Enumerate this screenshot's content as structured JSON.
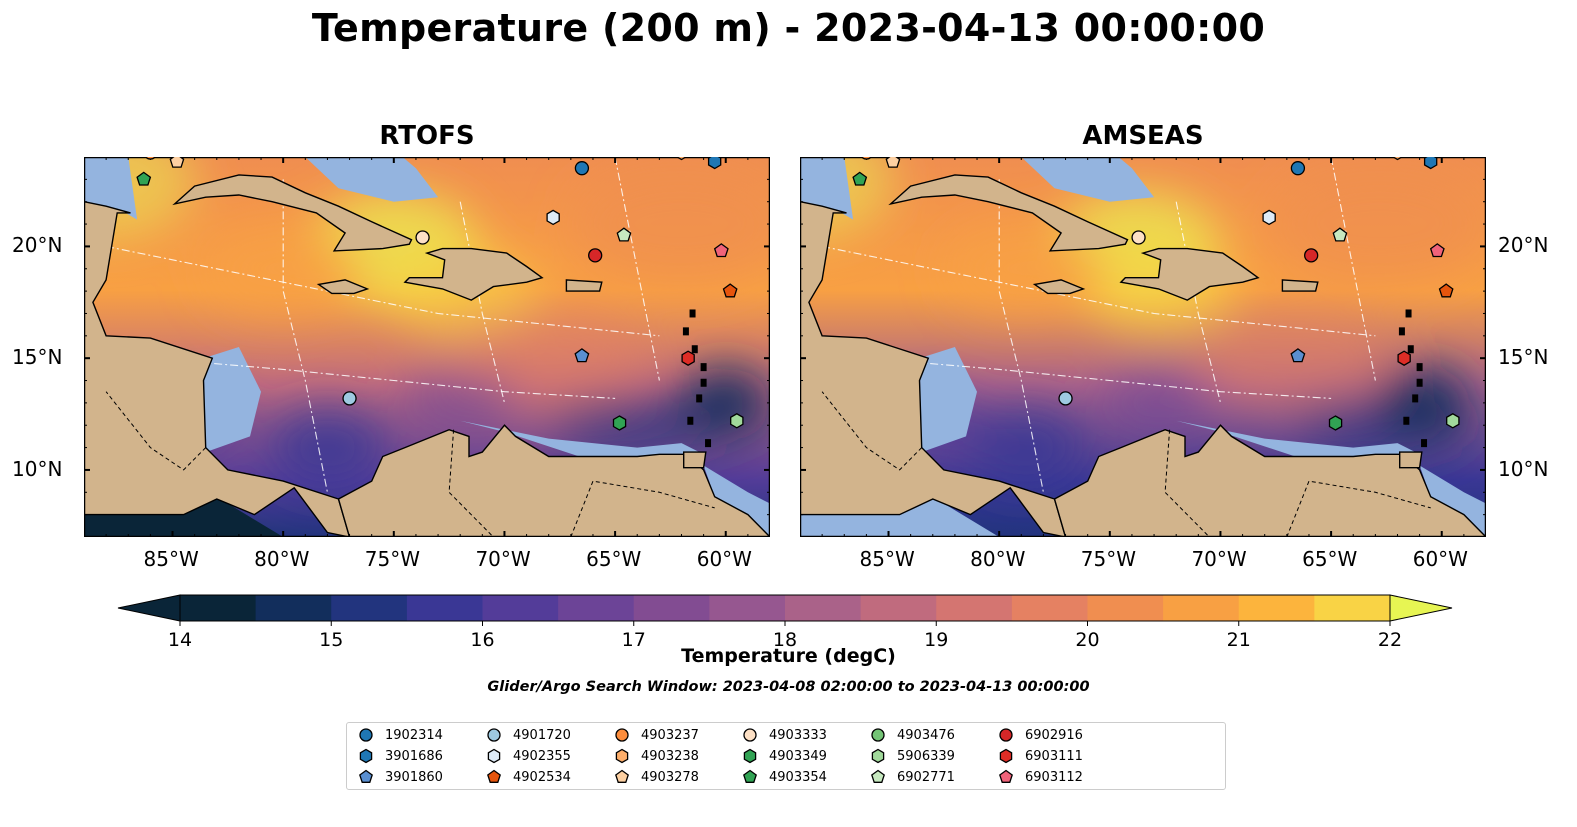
{
  "title": "Temperature (200 m) - 2023-04-13 00:00:00",
  "panels": [
    {
      "title": "RTOFS"
    },
    {
      "title": "AMSEAS"
    }
  ],
  "lon_ticks": [
    "85°W",
    "80°W",
    "75°W",
    "70°W",
    "65°W",
    "60°W"
  ],
  "lat_ticks": [
    "20°N",
    "15°N",
    "10°N"
  ],
  "map_extent": {
    "lon_min": -89,
    "lon_max": -58,
    "lat_min": 7,
    "lat_max": 24
  },
  "colorbar": {
    "label": "Temperature (degC)",
    "min": 14,
    "max": 22,
    "step": 0.5,
    "tick_labels": [
      "14",
      "15",
      "16",
      "17",
      "18",
      "19",
      "20",
      "21",
      "22"
    ],
    "colors": [
      "#0a2538",
      "#122e5c",
      "#22347e",
      "#3a3795",
      "#533c99",
      "#6c4497",
      "#824c92",
      "#965790",
      "#aa6289",
      "#c06b7e",
      "#d47571",
      "#e58162",
      "#f08e50",
      "#f8a043",
      "#fcb43d",
      "#f9d345",
      "#e7f553"
    ]
  },
  "search_window": "Glider/Argo Search Window: 2023-04-08 02:00:00 to 2023-04-13 00:00:00",
  "floats": [
    {
      "id": "1902314",
      "shape": "circle",
      "color": "#1f77b4",
      "lon": -66.5,
      "lat": 23.5
    },
    {
      "id": "3901686",
      "shape": "hexagon",
      "color": "#1f77b4",
      "lon": -60.5,
      "lat": 23.8
    },
    {
      "id": "3901860",
      "shape": "pentagon",
      "color": "#5a8fd0",
      "lon": -66.5,
      "lat": 15.1
    },
    {
      "id": "4901720",
      "shape": "circle",
      "color": "#9ecae1",
      "lon": -77.0,
      "lat": 13.2
    },
    {
      "id": "4902355",
      "shape": "hexagon",
      "color": "#deebf7",
      "lon": -67.8,
      "lat": 21.3
    },
    {
      "id": "4902534",
      "shape": "pentagon",
      "color": "#e6550d",
      "lon": -59.8,
      "lat": 18.0
    },
    {
      "id": "4903237",
      "shape": "circle",
      "color": "#fd8d3c",
      "lon": -86.0,
      "lat": 24.2
    },
    {
      "id": "4903238",
      "shape": "hexagon",
      "color": "#fdae6b",
      "lon": -62.0,
      "lat": 24.2
    },
    {
      "id": "4903278",
      "shape": "pentagon",
      "color": "#fdd0a2",
      "lon": -84.8,
      "lat": 23.8
    },
    {
      "id": "4903333",
      "shape": "circle",
      "color": "#fde0c5",
      "lon": -73.7,
      "lat": 20.4
    },
    {
      "id": "4903349",
      "shape": "hexagon",
      "color": "#31a354",
      "lon": -64.8,
      "lat": 12.1
    },
    {
      "id": "4903354",
      "shape": "pentagon",
      "color": "#31a354",
      "lon": -86.3,
      "lat": 23.0
    },
    {
      "id": "4903476",
      "shape": "circle",
      "color": "#74c476",
      "lon": -63.0,
      "lat": 24.3
    },
    {
      "id": "5906339",
      "shape": "hexagon",
      "color": "#a1d99b",
      "lon": -59.5,
      "lat": 12.2
    },
    {
      "id": "6902771",
      "shape": "pentagon",
      "color": "#c7e9c0",
      "lon": -64.6,
      "lat": 20.5
    },
    {
      "id": "6902916",
      "shape": "circle",
      "color": "#d62728",
      "lon": -65.9,
      "lat": 19.6
    },
    {
      "id": "6903111",
      "shape": "hexagon",
      "color": "#de2d26",
      "lon": -61.7,
      "lat": 15.0
    },
    {
      "id": "6903112",
      "shape": "pentagon",
      "color": "#f0637a",
      "lon": -60.2,
      "lat": 19.8
    }
  ],
  "colors": {
    "land": "#d2b48c",
    "shelf": "#94b4df",
    "pacific": "#0a2538"
  }
}
